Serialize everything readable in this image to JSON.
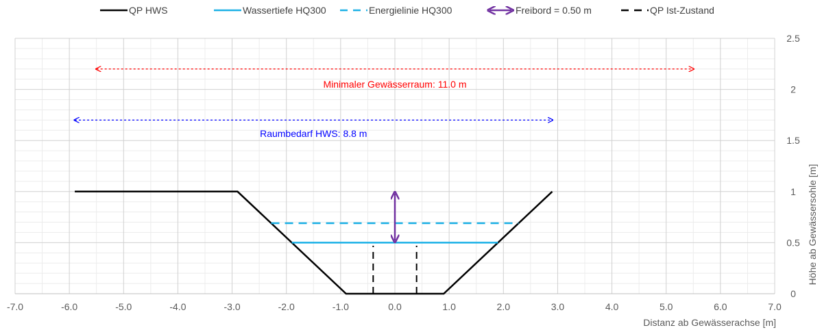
{
  "chart_data": {
    "type": "line",
    "xlabel": "Distanz ab Gewässerachse [m]",
    "ylabel": "Höhe ab Gewässersohle [m]",
    "xlim": [
      -7.0,
      7.0
    ],
    "ylim": [
      0,
      2.5
    ],
    "x_ticks": [
      "-7.0",
      "-6.0",
      "-5.0",
      "-4.0",
      "-3.0",
      "-2.0",
      "-1.0",
      "0.0",
      "1.0",
      "2.0",
      "3.0",
      "4.0",
      "5.0",
      "6.0",
      "7.0"
    ],
    "y_ticks": [
      "0",
      "0.5",
      "1",
      "1.5",
      "2",
      "2.5"
    ],
    "grid": true,
    "legend_position": "top",
    "series": [
      {
        "name": "QP HWS",
        "color": "#000000",
        "style": "solid",
        "x": [
          -5.9,
          -2.9,
          -0.9,
          0.9,
          2.9
        ],
        "y": [
          1.0,
          1.0,
          0.0,
          0.0,
          1.0
        ]
      },
      {
        "name": "Wassertiefe HQ300",
        "color": "#1ab0e6",
        "style": "solid",
        "x": [
          -1.9,
          1.9
        ],
        "y": [
          0.5,
          0.5
        ]
      },
      {
        "name": "Energielinie HQ300",
        "color": "#1ab0e6",
        "style": "dashed",
        "x": [
          -2.28,
          2.28
        ],
        "y": [
          0.69,
          0.69
        ]
      },
      {
        "name": "Freibord = 0.50 m",
        "color": "#7030a0",
        "style": "double-arrow",
        "x": [
          0.0,
          0.0
        ],
        "y": [
          0.5,
          1.0
        ]
      },
      {
        "name": "QP Ist-Zustand",
        "color": "#000000",
        "style": "dashed",
        "segments": [
          {
            "x": [
              -0.4,
              -0.4
            ],
            "y": [
              0.0,
              0.47
            ]
          },
          {
            "x": [
              0.4,
              0.4
            ],
            "y": [
              0.0,
              0.47
            ]
          }
        ]
      }
    ],
    "annotations": [
      {
        "text": "Minimaler Gewässerraum: 11.0 m",
        "color": "#ff0000",
        "arrow_x": [
          -5.5,
          5.5
        ],
        "arrow_y": 2.2,
        "text_y": 2.05
      },
      {
        "text": "Raumbedarf HWS: 8.8 m",
        "color": "#0000ff",
        "arrow_x": [
          -5.9,
          2.9
        ],
        "arrow_y": 1.7,
        "text_y": 1.57
      }
    ]
  }
}
